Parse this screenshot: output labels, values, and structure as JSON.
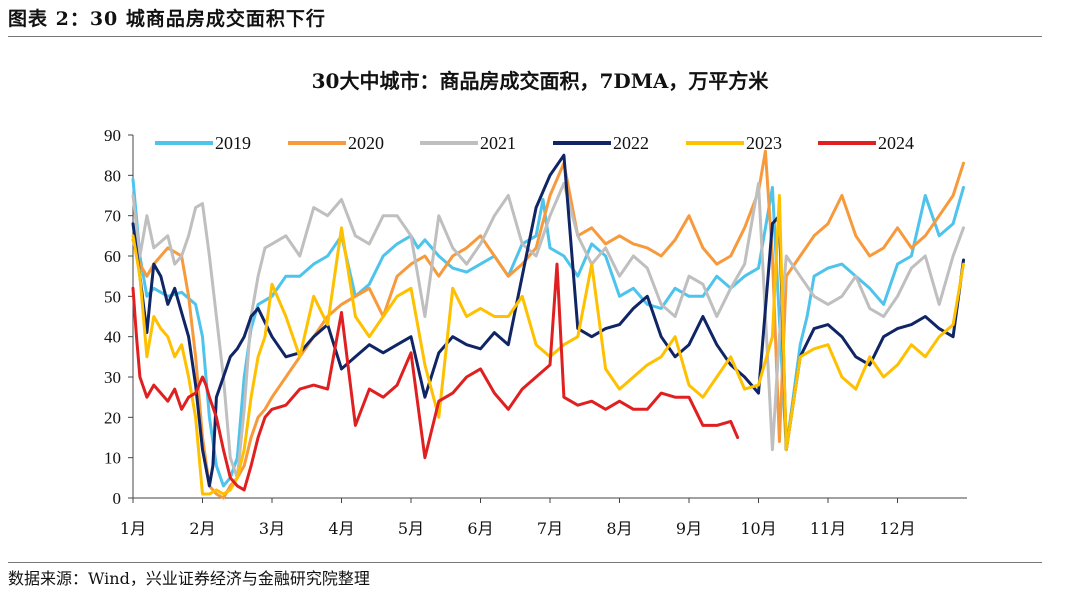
{
  "figure_title": "图表 2：30 城商品房成交面积下行",
  "source": "数据来源：Wind，兴业证券经济与金融研究院整理",
  "chart_data": {
    "type": "line",
    "title": "30大中城市：商品房成交面积，7DMA，万平方米",
    "ylim": [
      0,
      90
    ],
    "yticks": [
      0,
      10,
      20,
      30,
      40,
      50,
      60,
      70,
      80,
      90
    ],
    "xlim": [
      0,
      12
    ],
    "month_labels": [
      "1月",
      "2月",
      "3月",
      "4月",
      "5月",
      "6月",
      "7月",
      "8月",
      "9月",
      "10月",
      "11月",
      "12月"
    ],
    "legend_position": "top",
    "grid": false,
    "series": [
      {
        "name": "2019",
        "color": "#4EC3EB",
        "x": [
          0,
          0.1,
          0.2,
          0.3,
          0.5,
          0.7,
          0.9,
          1.0,
          1.1,
          1.2,
          1.3,
          1.4,
          1.5,
          1.6,
          1.7,
          1.8,
          2.0,
          2.2,
          2.4,
          2.6,
          2.8,
          3.0,
          3.2,
          3.4,
          3.6,
          3.8,
          4.0,
          4.1,
          4.2,
          4.4,
          4.6,
          4.8,
          5.0,
          5.2,
          5.4,
          5.6,
          5.8,
          5.9,
          6.0,
          6.2,
          6.4,
          6.6,
          6.8,
          7.0,
          7.2,
          7.4,
          7.6,
          7.8,
          8.0,
          8.2,
          8.4,
          8.6,
          8.8,
          9.0,
          9.2,
          9.4,
          9.6,
          9.7,
          9.8,
          10.0,
          10.2,
          10.4,
          10.6,
          10.8,
          11.0,
          11.2,
          11.4,
          11.6,
          11.8,
          11.95
        ],
        "y": [
          79,
          60,
          50,
          52,
          50,
          51,
          48,
          40,
          20,
          8,
          3,
          5,
          10,
          30,
          42,
          48,
          50,
          55,
          55,
          58,
          60,
          65,
          50,
          53,
          60,
          63,
          65,
          62,
          64,
          60,
          57,
          56,
          58,
          60,
          55,
          63,
          65,
          74,
          62,
          60,
          55,
          63,
          60,
          50,
          52,
          48,
          47,
          52,
          50,
          50,
          55,
          52,
          55,
          57,
          77,
          12,
          38,
          45,
          55,
          57,
          58,
          55,
          52,
          48,
          58,
          60,
          75,
          65,
          68,
          77
        ]
      },
      {
        "name": "2020",
        "color": "#F79A3C",
        "x": [
          0,
          0.1,
          0.2,
          0.3,
          0.5,
          0.7,
          0.8,
          0.9,
          1.0,
          1.1,
          1.2,
          1.3,
          1.4,
          1.5,
          1.6,
          1.7,
          1.8,
          1.9,
          2.0,
          2.2,
          2.4,
          2.6,
          2.8,
          3.0,
          3.2,
          3.4,
          3.6,
          3.8,
          4.0,
          4.2,
          4.4,
          4.6,
          4.8,
          5.0,
          5.2,
          5.4,
          5.6,
          5.8,
          6.0,
          6.2,
          6.4,
          6.6,
          6.8,
          7.0,
          7.2,
          7.4,
          7.6,
          7.8,
          8.0,
          8.2,
          8.4,
          8.6,
          8.8,
          9.0,
          9.1,
          9.2,
          9.3,
          9.4,
          9.6,
          9.8,
          10.0,
          10.2,
          10.4,
          10.6,
          10.8,
          11.0,
          11.2,
          11.4,
          11.6,
          11.8,
          11.95
        ],
        "y": [
          64,
          58,
          55,
          58,
          62,
          60,
          50,
          35,
          15,
          3,
          1,
          0,
          3,
          5,
          8,
          15,
          20,
          22,
          25,
          30,
          35,
          40,
          45,
          48,
          50,
          52,
          45,
          55,
          58,
          60,
          55,
          60,
          62,
          65,
          60,
          55,
          58,
          62,
          75,
          83,
          65,
          67,
          63,
          65,
          63,
          62,
          60,
          64,
          70,
          62,
          58,
          60,
          67,
          76,
          86,
          60,
          14,
          55,
          60,
          65,
          68,
          75,
          65,
          60,
          62,
          67,
          62,
          65,
          70,
          75,
          83
        ]
      },
      {
        "name": "2021",
        "color": "#BFBFBF",
        "x": [
          0,
          0.1,
          0.2,
          0.3,
          0.5,
          0.6,
          0.7,
          0.8,
          0.9,
          1.0,
          1.1,
          1.2,
          1.3,
          1.4,
          1.5,
          1.6,
          1.7,
          1.8,
          1.9,
          2.0,
          2.2,
          2.4,
          2.6,
          2.8,
          3.0,
          3.2,
          3.4,
          3.6,
          3.8,
          4.0,
          4.2,
          4.4,
          4.6,
          4.8,
          5.0,
          5.2,
          5.4,
          5.6,
          5.8,
          6.0,
          6.2,
          6.4,
          6.6,
          6.8,
          7.0,
          7.2,
          7.4,
          7.6,
          7.8,
          8.0,
          8.2,
          8.4,
          8.6,
          8.8,
          9.0,
          9.2,
          9.3,
          9.4,
          9.6,
          9.8,
          10.0,
          10.2,
          10.4,
          10.6,
          10.8,
          11.0,
          11.2,
          11.4,
          11.6,
          11.8,
          11.95
        ],
        "y": [
          75,
          60,
          70,
          62,
          65,
          58,
          60,
          65,
          72,
          73,
          60,
          45,
          30,
          10,
          5,
          22,
          45,
          55,
          62,
          63,
          65,
          60,
          72,
          70,
          74,
          65,
          63,
          70,
          70,
          65,
          45,
          70,
          62,
          58,
          63,
          70,
          75,
          63,
          60,
          70,
          78,
          65,
          58,
          62,
          55,
          60,
          57,
          48,
          45,
          55,
          53,
          45,
          52,
          58,
          78,
          12,
          40,
          60,
          55,
          50,
          48,
          50,
          55,
          47,
          45,
          50,
          57,
          60,
          48,
          60,
          67
        ]
      },
      {
        "name": "2022",
        "color": "#0F2566",
        "x": [
          0,
          0.1,
          0.2,
          0.25,
          0.3,
          0.4,
          0.5,
          0.6,
          0.7,
          0.8,
          0.9,
          1.0,
          1.1,
          1.15,
          1.2,
          1.3,
          1.4,
          1.5,
          1.6,
          1.7,
          1.8,
          2.0,
          2.2,
          2.4,
          2.6,
          2.8,
          3.0,
          3.2,
          3.4,
          3.6,
          3.8,
          4.0,
          4.2,
          4.4,
          4.6,
          4.8,
          5.0,
          5.2,
          5.4,
          5.6,
          5.8,
          6.0,
          6.2,
          6.4,
          6.6,
          6.8,
          7.0,
          7.2,
          7.4,
          7.6,
          7.8,
          8.0,
          8.2,
          8.4,
          8.6,
          8.8,
          9.0,
          9.2,
          9.3,
          9.4,
          9.6,
          9.8,
          10.0,
          10.2,
          10.4,
          10.6,
          10.8,
          11.0,
          11.2,
          11.4,
          11.6,
          11.8,
          11.95
        ],
        "y": [
          68,
          55,
          41,
          50,
          58,
          55,
          48,
          52,
          46,
          40,
          28,
          12,
          3,
          8,
          25,
          30,
          35,
          37,
          40,
          45,
          47,
          40,
          35,
          36,
          40,
          43,
          32,
          35,
          38,
          36,
          38,
          40,
          25,
          36,
          40,
          38,
          37,
          41,
          38,
          55,
          72,
          80,
          85,
          42,
          40,
          42,
          43,
          47,
          50,
          40,
          35,
          38,
          45,
          38,
          33,
          30,
          26,
          68,
          70,
          12,
          35,
          42,
          43,
          40,
          35,
          33,
          40,
          42,
          43,
          45,
          42,
          40,
          59
        ]
      },
      {
        "name": "2023",
        "color": "#FFC000",
        "x": [
          0,
          0.1,
          0.2,
          0.3,
          0.4,
          0.5,
          0.6,
          0.7,
          0.8,
          0.9,
          1.0,
          1.1,
          1.2,
          1.3,
          1.4,
          1.5,
          1.6,
          1.7,
          1.8,
          1.9,
          2.0,
          2.2,
          2.4,
          2.6,
          2.8,
          3.0,
          3.2,
          3.4,
          3.6,
          3.8,
          4.0,
          4.2,
          4.4,
          4.6,
          4.8,
          5.0,
          5.2,
          5.4,
          5.6,
          5.8,
          6.0,
          6.2,
          6.4,
          6.6,
          6.8,
          7.0,
          7.2,
          7.4,
          7.6,
          7.8,
          8.0,
          8.2,
          8.4,
          8.6,
          8.8,
          9.0,
          9.2,
          9.3,
          9.4,
          9.6,
          9.8,
          10.0,
          10.2,
          10.4,
          10.6,
          10.8,
          11.0,
          11.2,
          11.4,
          11.6,
          11.8,
          11.95
        ],
        "y": [
          65,
          55,
          35,
          45,
          42,
          40,
          35,
          38,
          30,
          20,
          1,
          1,
          2,
          1,
          2,
          5,
          12,
          25,
          35,
          40,
          53,
          45,
          35,
          50,
          43,
          67,
          45,
          40,
          45,
          50,
          52,
          33,
          20,
          52,
          45,
          47,
          45,
          45,
          50,
          38,
          35,
          38,
          40,
          58,
          32,
          27,
          30,
          33,
          35,
          40,
          28,
          25,
          30,
          35,
          27,
          28,
          40,
          75,
          12,
          35,
          37,
          38,
          30,
          27,
          35,
          30,
          33,
          38,
          35,
          40,
          43,
          58
        ]
      },
      {
        "name": "2024",
        "color": "#E02020",
        "x": [
          0,
          0.05,
          0.1,
          0.2,
          0.3,
          0.4,
          0.5,
          0.6,
          0.7,
          0.8,
          0.9,
          1.0,
          1.05,
          1.1,
          1.2,
          1.3,
          1.4,
          1.5,
          1.6,
          1.7,
          1.8,
          1.9,
          2.0,
          2.2,
          2.4,
          2.6,
          2.8,
          3.0,
          3.2,
          3.4,
          3.6,
          3.8,
          4.0,
          4.2,
          4.4,
          4.6,
          4.8,
          5.0,
          5.2,
          5.4,
          5.6,
          5.8,
          6.0,
          6.1,
          6.2,
          6.4,
          6.6,
          6.8,
          7.0,
          7.2,
          7.4,
          7.6,
          7.8,
          8.0,
          8.2,
          8.4,
          8.6,
          8.7
        ],
        "y": [
          52,
          40,
          30,
          25,
          28,
          26,
          24,
          27,
          22,
          25,
          26,
          30,
          28,
          25,
          20,
          12,
          5,
          3,
          2,
          8,
          15,
          20,
          22,
          23,
          27,
          28,
          27,
          46,
          18,
          27,
          25,
          28,
          36,
          10,
          24,
          26,
          30,
          32,
          26,
          22,
          27,
          30,
          33,
          58,
          25,
          23,
          24,
          22,
          24,
          22,
          22,
          26,
          25,
          25,
          18,
          18,
          19,
          15
        ]
      }
    ]
  }
}
